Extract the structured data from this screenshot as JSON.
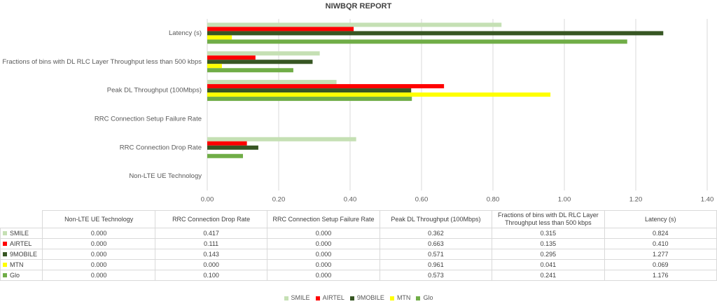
{
  "chart_data": {
    "type": "bar",
    "orientation": "horizontal",
    "title": "NIWBQR REPORT",
    "categories": [
      "Non-LTE UE Technology",
      "RRC Connection Drop Rate",
      "RRC Connection Setup Failure Rate",
      "Peak DL Throughput (100Mbps)",
      "Fractions of bins with DL RLC Layer Throughput less than 500 kbps",
      "Latency (s)"
    ],
    "series": [
      {
        "name": "SMILE",
        "color": "#c5e0b4",
        "values": [
          0,
          0.417,
          0,
          0.362,
          0.315,
          0.824
        ],
        "value_labels": [
          "0.000",
          "0.417",
          "0.000",
          "0.362",
          "0.315",
          "0.824"
        ]
      },
      {
        "name": "AIRTEL",
        "color": "#ff0000",
        "values": [
          0,
          0.111,
          0,
          0.663,
          0.135,
          0.41
        ],
        "value_labels": [
          "0.000",
          "0.111",
          "0.000",
          "0.663",
          "0.135",
          "0.410"
        ]
      },
      {
        "name": "9MOBILE",
        "color": "#375623",
        "values": [
          0,
          0.143,
          0,
          0.571,
          0.295,
          1.277
        ],
        "value_labels": [
          "0.000",
          "0.143",
          "0.000",
          "0.571",
          "0.295",
          "1.277"
        ]
      },
      {
        "name": "MTN",
        "color": "#ffff00",
        "values": [
          0,
          0,
          0,
          0.961,
          0.041,
          0.069
        ],
        "value_labels": [
          "0.000",
          "0.000",
          "0.000",
          "0.961",
          "0.041",
          "0.069"
        ]
      },
      {
        "name": "Glo",
        "color": "#70ad47",
        "values": [
          0,
          0.1,
          0,
          0.573,
          0.241,
          1.176
        ],
        "value_labels": [
          "0.000",
          "0.100",
          "0.000",
          "0.573",
          "0.241",
          "1.176"
        ]
      }
    ],
    "xlim": [
      0,
      1.4
    ],
    "xticks": [
      {
        "value": 0,
        "label": "0.00"
      },
      {
        "value": 0.2,
        "label": "0.20"
      },
      {
        "value": 0.4,
        "label": "0.40"
      },
      {
        "value": 0.6,
        "label": "0.60"
      },
      {
        "value": 0.8,
        "label": "0.80"
      },
      {
        "value": 1,
        "label": "1.00"
      },
      {
        "value": 1.2,
        "label": "1.20"
      },
      {
        "value": 1.4,
        "label": "1.40"
      }
    ],
    "grid": true
  }
}
